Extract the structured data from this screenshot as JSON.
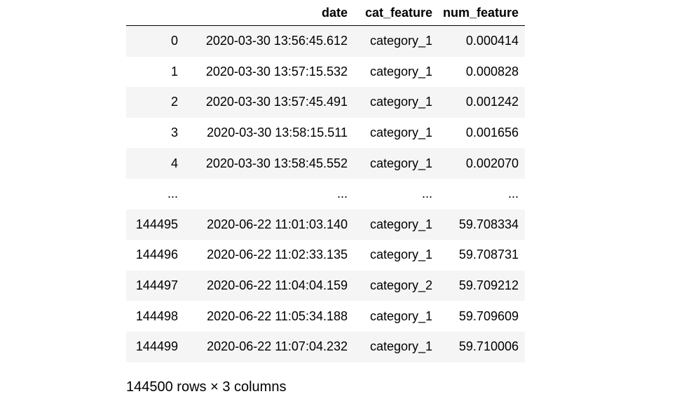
{
  "dataframe": {
    "columns": [
      "",
      "date",
      "cat_feature",
      "num_feature"
    ],
    "rows": [
      [
        "0",
        "2020-03-30 13:56:45.612",
        "category_1",
        "0.000414"
      ],
      [
        "1",
        "2020-03-30 13:57:15.532",
        "category_1",
        "0.000828"
      ],
      [
        "2",
        "2020-03-30 13:57:45.491",
        "category_1",
        "0.001242"
      ],
      [
        "3",
        "2020-03-30 13:58:15.511",
        "category_1",
        "0.001656"
      ],
      [
        "4",
        "2020-03-30 13:58:45.552",
        "category_1",
        "0.002070"
      ],
      [
        "...",
        "...",
        "...",
        "..."
      ],
      [
        "144495",
        "2020-06-22 11:01:03.140",
        "category_1",
        "59.708334"
      ],
      [
        "144496",
        "2020-06-22 11:02:33.135",
        "category_1",
        "59.708731"
      ],
      [
        "144497",
        "2020-06-22 11:04:04.159",
        "category_2",
        "59.709212"
      ],
      [
        "144498",
        "2020-06-22 11:05:34.188",
        "category_1",
        "59.709609"
      ],
      [
        "144499",
        "2020-06-22 11:07:04.232",
        "category_1",
        "59.710006"
      ]
    ]
  },
  "caption": "144500 rows × 3 columns"
}
